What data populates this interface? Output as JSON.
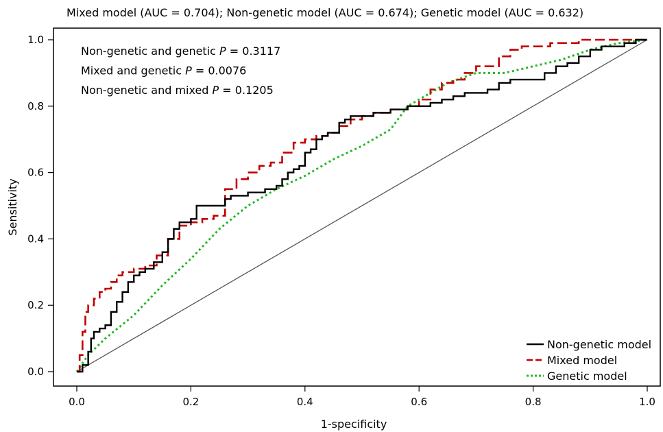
{
  "chart_data": {
    "type": "line",
    "title": "Mixed model (AUC = 0.704); Non-genetic model (AUC = 0.674); Genetic model (AUC = 0.632)",
    "xlabel": "1-specificity",
    "ylabel": "Sensitivity",
    "xlim": [
      0,
      1
    ],
    "ylim": [
      0,
      1
    ],
    "x_ticks": [
      0.0,
      0.2,
      0.4,
      0.6,
      0.8,
      1.0
    ],
    "y_ticks": [
      0.0,
      0.2,
      0.4,
      0.6,
      0.8,
      1.0
    ],
    "x_tick_labels": [
      "0.0",
      "0.2",
      "0.4",
      "0.6",
      "0.8",
      "1.0"
    ],
    "y_tick_labels": [
      "0.0",
      "0.2",
      "0.4",
      "0.6",
      "0.8",
      "1.0"
    ],
    "grid": false,
    "legend_position": "bottom-right",
    "annotations": [
      {
        "prefix": "Non-genetic and genetic ",
        "p": "P",
        "suffix": " = 0.3117"
      },
      {
        "prefix": "Mixed and genetic ",
        "p": "P",
        "suffix": " = 0.0076"
      },
      {
        "prefix": "Non-genetic and mixed ",
        "p": "P",
        "suffix": " = 0.1205"
      }
    ],
    "series": [
      {
        "name": "Non-genetic model",
        "color": "#000000",
        "style": "solid",
        "step": true,
        "x": [
          0.0,
          0.01,
          0.02,
          0.025,
          0.03,
          0.04,
          0.05,
          0.06,
          0.07,
          0.08,
          0.09,
          0.1,
          0.11,
          0.12,
          0.135,
          0.15,
          0.16,
          0.17,
          0.18,
          0.2,
          0.21,
          0.23,
          0.25,
          0.26,
          0.27,
          0.3,
          0.33,
          0.35,
          0.36,
          0.37,
          0.38,
          0.39,
          0.4,
          0.41,
          0.42,
          0.43,
          0.44,
          0.46,
          0.47,
          0.48,
          0.5,
          0.52,
          0.55,
          0.58,
          0.6,
          0.62,
          0.64,
          0.66,
          0.68,
          0.7,
          0.72,
          0.74,
          0.76,
          0.8,
          0.82,
          0.84,
          0.86,
          0.88,
          0.9,
          0.92,
          0.95,
          0.96,
          0.98,
          1.0
        ],
        "y": [
          0.0,
          0.02,
          0.06,
          0.1,
          0.12,
          0.13,
          0.14,
          0.18,
          0.21,
          0.24,
          0.27,
          0.29,
          0.3,
          0.31,
          0.33,
          0.36,
          0.4,
          0.43,
          0.45,
          0.46,
          0.5,
          0.5,
          0.5,
          0.52,
          0.53,
          0.54,
          0.55,
          0.56,
          0.58,
          0.6,
          0.61,
          0.62,
          0.66,
          0.67,
          0.7,
          0.71,
          0.72,
          0.75,
          0.76,
          0.77,
          0.77,
          0.78,
          0.79,
          0.8,
          0.8,
          0.81,
          0.82,
          0.83,
          0.84,
          0.84,
          0.85,
          0.87,
          0.88,
          0.88,
          0.9,
          0.92,
          0.93,
          0.95,
          0.97,
          0.98,
          0.98,
          0.99,
          1.0,
          1.0
        ]
      },
      {
        "name": "Mixed model",
        "color": "#c00000",
        "style": "dashed",
        "step": true,
        "x": [
          0.0,
          0.005,
          0.01,
          0.015,
          0.02,
          0.03,
          0.04,
          0.05,
          0.06,
          0.07,
          0.08,
          0.1,
          0.12,
          0.14,
          0.16,
          0.18,
          0.2,
          0.22,
          0.24,
          0.26,
          0.28,
          0.3,
          0.32,
          0.34,
          0.36,
          0.38,
          0.4,
          0.42,
          0.44,
          0.46,
          0.48,
          0.5,
          0.52,
          0.55,
          0.58,
          0.6,
          0.62,
          0.64,
          0.66,
          0.68,
          0.7,
          0.72,
          0.74,
          0.76,
          0.78,
          0.8,
          0.83,
          0.86,
          0.88,
          0.9,
          0.93,
          1.0
        ],
        "y": [
          0.0,
          0.05,
          0.12,
          0.18,
          0.2,
          0.22,
          0.24,
          0.25,
          0.27,
          0.29,
          0.3,
          0.31,
          0.32,
          0.35,
          0.4,
          0.44,
          0.45,
          0.46,
          0.47,
          0.55,
          0.58,
          0.6,
          0.62,
          0.63,
          0.66,
          0.69,
          0.7,
          0.71,
          0.72,
          0.74,
          0.76,
          0.77,
          0.78,
          0.79,
          0.8,
          0.82,
          0.85,
          0.87,
          0.88,
          0.9,
          0.92,
          0.92,
          0.95,
          0.97,
          0.98,
          0.98,
          0.99,
          0.99,
          1.0,
          1.0,
          1.0,
          1.0
        ]
      },
      {
        "name": "Genetic model",
        "color": "#22b822",
        "style": "dotted",
        "step": false,
        "x": [
          0.0,
          0.02,
          0.05,
          0.1,
          0.15,
          0.2,
          0.25,
          0.3,
          0.35,
          0.4,
          0.45,
          0.5,
          0.55,
          0.58,
          0.6,
          0.65,
          0.7,
          0.75,
          0.8,
          0.85,
          0.9,
          0.95,
          1.0
        ],
        "y": [
          0.0,
          0.05,
          0.1,
          0.17,
          0.26,
          0.34,
          0.43,
          0.5,
          0.55,
          0.59,
          0.64,
          0.68,
          0.73,
          0.8,
          0.82,
          0.87,
          0.9,
          0.9,
          0.92,
          0.94,
          0.97,
          0.99,
          1.0
        ]
      }
    ],
    "reference_line": {
      "x": [
        0,
        1
      ],
      "y": [
        0,
        1
      ],
      "color": "#555555"
    }
  }
}
